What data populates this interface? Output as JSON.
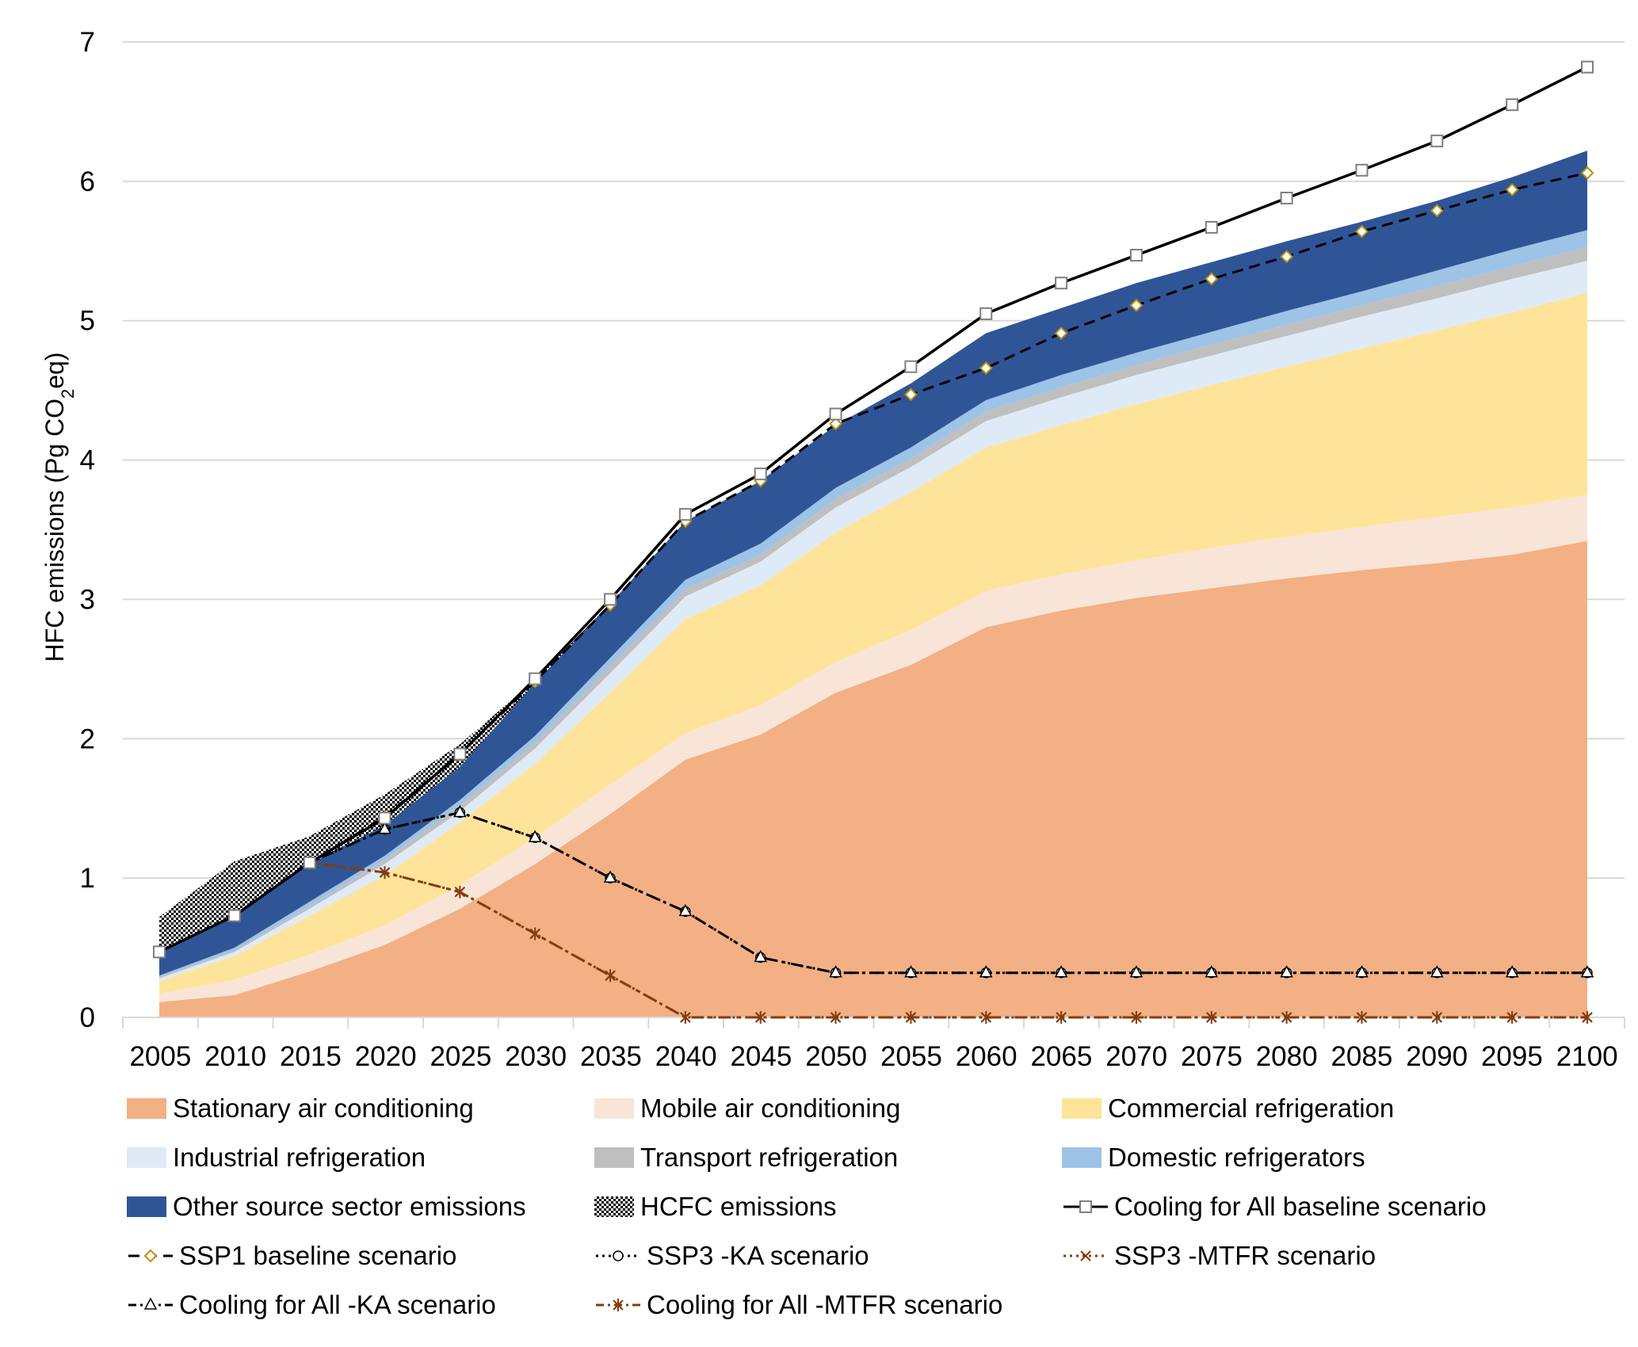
{
  "chart_data": {
    "type": "area",
    "title": "",
    "xlabel": "",
    "ylabel": "HFC emissions (Pg CO2eq)",
    "ylabel_parts": {
      "pre": "HFC emissions (Pg CO",
      "sub": "2",
      "post": "eq)"
    },
    "ylim": [
      0,
      7
    ],
    "yticks": [
      0,
      1,
      2,
      3,
      4,
      5,
      6,
      7
    ],
    "grid": true,
    "legend_position": "bottom",
    "categories": [
      "2005",
      "2010",
      "2015",
      "2020",
      "2025",
      "2030",
      "2035",
      "2040",
      "2045",
      "2050",
      "2055",
      "2060",
      "2065",
      "2070",
      "2075",
      "2080",
      "2085",
      "2090",
      "2095",
      "2100"
    ],
    "stacked_series": [
      {
        "name": "Stationary air conditioning",
        "color": "#F2B084",
        "values": [
          0.11,
          0.16,
          0.33,
          0.52,
          0.78,
          1.1,
          1.46,
          1.85,
          2.03,
          2.33,
          2.53,
          2.8,
          2.92,
          3.01,
          3.08,
          3.15,
          3.21,
          3.26,
          3.32,
          3.42
        ]
      },
      {
        "name": "Mobile air conditioning",
        "color": "#F9E5D8",
        "values": [
          0.06,
          0.11,
          0.12,
          0.14,
          0.17,
          0.19,
          0.21,
          0.19,
          0.21,
          0.22,
          0.25,
          0.26,
          0.26,
          0.27,
          0.29,
          0.3,
          0.31,
          0.33,
          0.34,
          0.33
        ]
      },
      {
        "name": "Commercial refrigeration",
        "color": "#FEE49A",
        "values": [
          0.09,
          0.17,
          0.28,
          0.36,
          0.45,
          0.53,
          0.66,
          0.82,
          0.86,
          0.93,
          0.99,
          1.03,
          1.07,
          1.12,
          1.17,
          1.22,
          1.28,
          1.34,
          1.4,
          1.45
        ]
      },
      {
        "name": "Industrial refrigeration",
        "color": "#DEEBF7",
        "values": [
          0.02,
          0.03,
          0.05,
          0.08,
          0.08,
          0.11,
          0.14,
          0.16,
          0.17,
          0.18,
          0.18,
          0.19,
          0.2,
          0.21,
          0.21,
          0.22,
          0.23,
          0.23,
          0.24,
          0.23
        ]
      },
      {
        "name": "Transport refrigeration",
        "color": "#BFBFBF",
        "values": [
          0.01,
          0.01,
          0.02,
          0.03,
          0.04,
          0.04,
          0.05,
          0.05,
          0.05,
          0.06,
          0.06,
          0.07,
          0.07,
          0.07,
          0.08,
          0.08,
          0.08,
          0.09,
          0.09,
          0.1
        ]
      },
      {
        "name": "Domestic refrigerators",
        "color": "#9DC3E6",
        "values": [
          0.01,
          0.02,
          0.03,
          0.03,
          0.04,
          0.05,
          0.06,
          0.07,
          0.08,
          0.08,
          0.08,
          0.08,
          0.09,
          0.09,
          0.09,
          0.1,
          0.1,
          0.11,
          0.12,
          0.12
        ]
      },
      {
        "name": "Other source sector emissions",
        "color": "#2F5597",
        "values": [
          0.16,
          0.22,
          0.27,
          0.22,
          0.24,
          0.38,
          0.39,
          0.42,
          0.45,
          0.45,
          0.46,
          0.48,
          0.48,
          0.5,
          0.5,
          0.5,
          0.5,
          0.5,
          0.52,
          0.57
        ]
      },
      {
        "name": "HCFC emissions",
        "color": "#000000",
        "pattern": "checker",
        "values": [
          0.26,
          0.4,
          0.2,
          0.22,
          0.16,
          0.02,
          0,
          0,
          0,
          0,
          0,
          0,
          0,
          0,
          0,
          0,
          0,
          0,
          0,
          0
        ]
      }
    ],
    "line_series": [
      {
        "name": "Cooling for All baseline scenario",
        "color": "#000000",
        "dash": "solid",
        "marker": "square",
        "values": [
          0.47,
          0.73,
          1.11,
          1.43,
          1.89,
          2.43,
          3.0,
          3.61,
          3.9,
          4.33,
          4.67,
          5.05,
          5.27,
          5.47,
          5.67,
          5.88,
          6.08,
          6.29,
          6.55,
          6.82
        ]
      },
      {
        "name": "SSP1 baseline scenario",
        "color": "#000000",
        "marker_color": "#BF9000",
        "dash": "dashed",
        "marker": "diamond",
        "values": [
          0.47,
          0.73,
          1.11,
          1.44,
          1.89,
          2.41,
          2.96,
          3.56,
          3.85,
          4.26,
          4.47,
          4.66,
          4.91,
          5.11,
          5.3,
          5.46,
          5.64,
          5.79,
          5.94,
          6.06
        ]
      },
      {
        "name": "SSP3 -KA scenario",
        "color": "#000000",
        "dash": "dotted",
        "marker": "circle",
        "values": [
          0.47,
          0.73,
          1.11,
          1.35,
          1.47,
          1.29,
          1.0,
          0.76,
          0.43,
          0.32,
          0.32,
          0.32,
          0.32,
          0.32,
          0.32,
          0.32,
          0.32,
          0.32,
          0.32,
          0.32
        ]
      },
      {
        "name": "SSP3 -MTFR scenario",
        "color": "#843C0C",
        "dash": "dotted",
        "marker": "x",
        "values": [
          0.47,
          0.73,
          1.11,
          1.04,
          0.9,
          0.6,
          0.3,
          0,
          0,
          0,
          0,
          0,
          0,
          0,
          0,
          0,
          0,
          0,
          0,
          0
        ]
      },
      {
        "name": "Cooling for All -KA scenario",
        "color": "#000000",
        "dash": "dashdot",
        "marker": "triangle",
        "values": [
          0.47,
          0.73,
          1.11,
          1.35,
          1.47,
          1.29,
          1.0,
          0.76,
          0.43,
          0.32,
          0.32,
          0.32,
          0.32,
          0.32,
          0.32,
          0.32,
          0.32,
          0.32,
          0.32,
          0.32
        ]
      },
      {
        "name": "Cooling for All -MTFR scenario",
        "color": "#843C0C",
        "dash": "dashdot",
        "marker": "star",
        "values": [
          0.47,
          0.73,
          1.11,
          1.04,
          0.9,
          0.6,
          0.3,
          0,
          0,
          0,
          0,
          0,
          0,
          0,
          0,
          0,
          0,
          0,
          0,
          0
        ]
      }
    ]
  },
  "legend": [
    {
      "label": "Stationary air conditioning",
      "kind": "area",
      "series": 0
    },
    {
      "label": "Mobile air conditioning",
      "kind": "area",
      "series": 1
    },
    {
      "label": "Commercial refrigeration",
      "kind": "area",
      "series": 2
    },
    {
      "label": "Industrial refrigeration",
      "kind": "area",
      "series": 3
    },
    {
      "label": "Transport refrigeration",
      "kind": "area",
      "series": 4
    },
    {
      "label": "Domestic refrigerators",
      "kind": "area",
      "series": 5
    },
    {
      "label": "Other source sector emissions",
      "kind": "area",
      "series": 6
    },
    {
      "label": "HCFC emissions",
      "kind": "area",
      "series": 7
    },
    {
      "label": "Cooling for All baseline scenario",
      "kind": "line",
      "series": 0
    },
    {
      "label": "SSP1 baseline scenario",
      "kind": "line",
      "series": 1
    },
    {
      "label": "SSP3 -KA scenario",
      "kind": "line",
      "series": 2
    },
    {
      "label": "SSP3 -MTFR scenario",
      "kind": "line",
      "series": 3
    },
    {
      "label": "Cooling for All -KA scenario",
      "kind": "line",
      "series": 4
    },
    {
      "label": "Cooling for All -MTFR scenario",
      "kind": "line",
      "series": 5
    }
  ]
}
